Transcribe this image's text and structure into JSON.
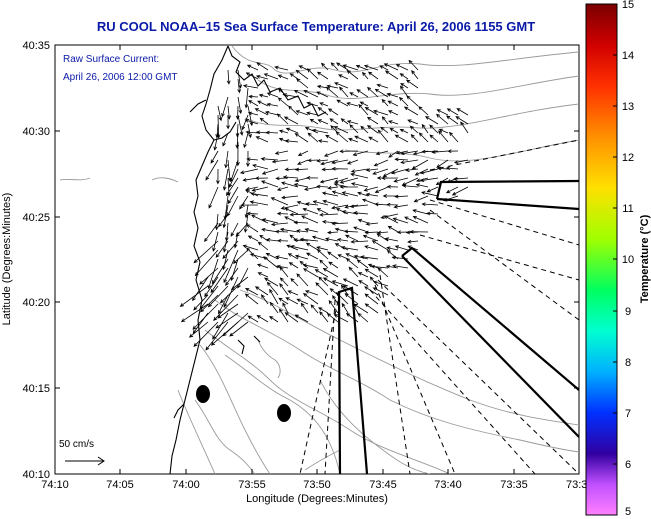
{
  "title": "RU COOL  NOAA–15  Sea Surface Temperature:  April 26, 2006 1155 GMT",
  "overlay": {
    "line1": "Raw Surface Current:",
    "line2": "April 26, 2006 12:00 GMT"
  },
  "xaxis": {
    "label": "Longitude (Degrees:Minutes)",
    "ticks": [
      "74:10",
      "74:05",
      "74:00",
      "73:55",
      "73:50",
      "73:45",
      "73:40",
      "73:35",
      "73:3"
    ]
  },
  "yaxis": {
    "label": "Latitude (Degrees:Minutes)",
    "ticks": [
      "40:35",
      "40:30",
      "40:25",
      "40:20",
      "40:15",
      "40:10"
    ]
  },
  "scale": {
    "label": "50 cm/s"
  },
  "colorbar": {
    "label": "Temperature (°C)",
    "ticks": [
      "15",
      "14",
      "13",
      "12",
      "11",
      "10",
      "9",
      "8",
      "7",
      "6",
      "5"
    ],
    "stops": [
      "#8b0000",
      "#ff0000",
      "#ff7f00",
      "#ffd400",
      "#b8ff00",
      "#00ff40",
      "#00ffc0",
      "#00c8ff",
      "#0050ff",
      "#1000c0",
      "#a040ff",
      "#ff60ff"
    ]
  },
  "colors": {
    "title": "#0a1aa8",
    "coast": "#000000",
    "contour": "#9a9a9a",
    "vector": "#000000"
  }
}
